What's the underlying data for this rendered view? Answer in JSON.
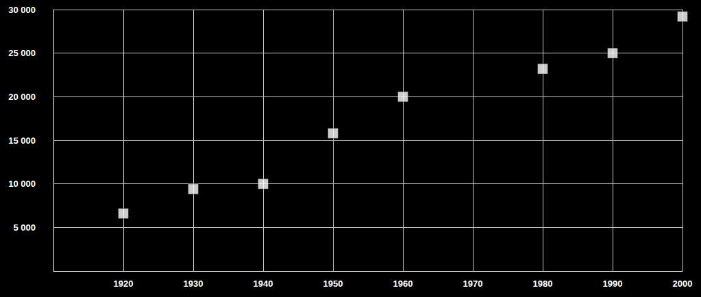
{
  "chart_data": {
    "type": "scatter",
    "x": [
      1920,
      1930,
      1940,
      1950,
      1960,
      1980,
      1990,
      2000
    ],
    "values": [
      6600,
      9400,
      10000,
      15800,
      20000,
      23200,
      25000,
      29200
    ],
    "color": "#ffffff",
    "marker": "square",
    "xlim": [
      1910,
      2000
    ],
    "xticks": [
      1920,
      1930,
      1940,
      1950,
      1960,
      1970,
      1980,
      1990,
      2000
    ],
    "ylim": [
      0,
      30000
    ],
    "yticks": [
      {
        "value": 5000,
        "label": "5 000"
      },
      {
        "value": 10000,
        "label": "10 000"
      },
      {
        "value": 15000,
        "label": "15 000"
      },
      {
        "value": 20000,
        "label": "20 000"
      },
      {
        "value": 25000,
        "label": "25 000"
      },
      {
        "value": 30000,
        "label": "30 000"
      }
    ],
    "grid": true
  }
}
